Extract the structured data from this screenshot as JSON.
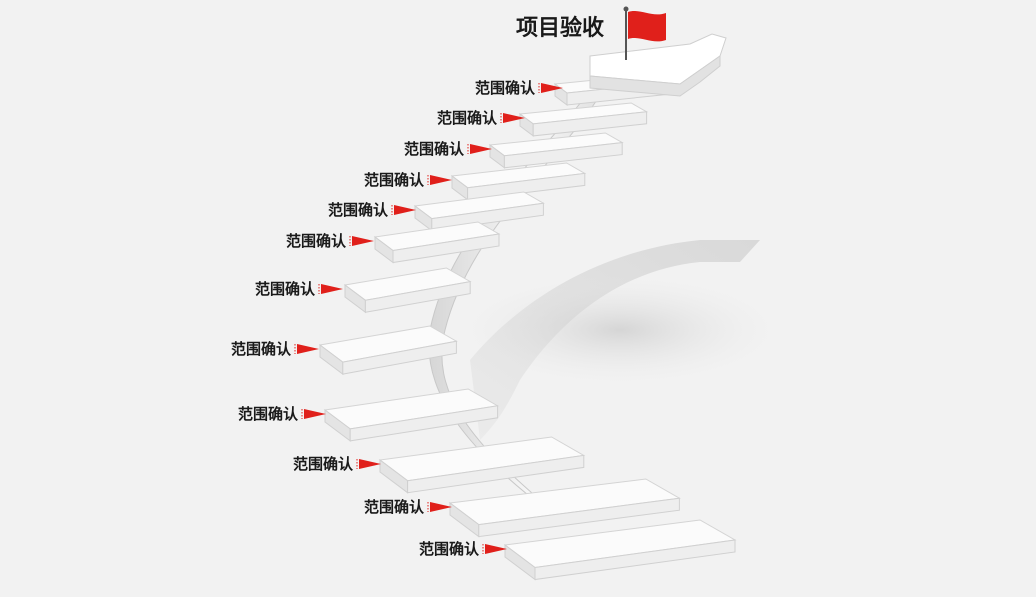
{
  "goal": {
    "label": "项目验收",
    "flag_color": "#e0201b",
    "icon": "flag-icon"
  },
  "steps": [
    {
      "label": "范围确认"
    },
    {
      "label": "范围确认"
    },
    {
      "label": "范围确认"
    },
    {
      "label": "范围确认"
    },
    {
      "label": "范围确认"
    },
    {
      "label": "范围确认"
    },
    {
      "label": "范围确认"
    },
    {
      "label": "范围确认"
    },
    {
      "label": "范围确认"
    },
    {
      "label": "范围确认"
    },
    {
      "label": "范围确认"
    },
    {
      "label": "范围确认"
    }
  ],
  "marker": {
    "icon": "pennant-icon",
    "color": "#e0201b"
  }
}
